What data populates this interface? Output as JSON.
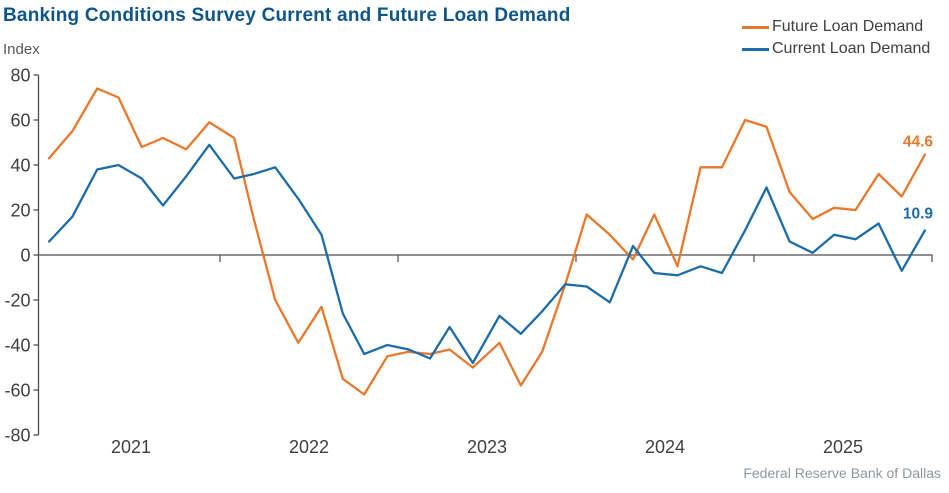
{
  "header": {
    "title": "Banking Conditions Survey Current and Future Loan Demand"
  },
  "y_axis_label": "Index",
  "footer": {
    "source": "Federal Reserve Bank of Dallas"
  },
  "colors": {
    "title": "#0E558A",
    "future": "#E8782B",
    "current": "#1B6CA8",
    "axis": "#4D4D4D",
    "tick_text": "#404040",
    "footer_text": "#8E979E"
  },
  "chart_data": {
    "type": "line",
    "title": "Banking Conditions Survey Current and Future Loan Demand",
    "ylabel": "Index",
    "xlabel": "",
    "grid": false,
    "legend_position": "top-right",
    "ylim": [
      -80,
      80
    ],
    "yticks": [
      80,
      60,
      40,
      20,
      0,
      -20,
      -40,
      -60,
      -80
    ],
    "xtick_year_labels": [
      "2021",
      "2022",
      "2023",
      "2024",
      "2025"
    ],
    "x": [
      2021.04,
      2021.17,
      2021.31,
      2021.43,
      2021.56,
      2021.68,
      2021.81,
      2021.94,
      2022.08,
      2022.19,
      2022.31,
      2022.44,
      2022.57,
      2022.69,
      2022.81,
      2022.94,
      2023.06,
      2023.18,
      2023.29,
      2023.42,
      2023.57,
      2023.69,
      2023.81,
      2023.94,
      2024.06,
      2024.19,
      2024.32,
      2024.44,
      2024.57,
      2024.7,
      2024.82,
      2024.95,
      2025.07,
      2025.2,
      2025.33,
      2025.45,
      2025.57,
      2025.7,
      2025.83,
      2025.96
    ],
    "series": [
      {
        "name": "Future Loan Demand",
        "color": "#E8782B",
        "values": [
          43,
          55,
          74,
          70,
          48,
          52,
          47,
          59,
          52,
          16,
          -20,
          -39,
          -23,
          -55,
          -62,
          -45,
          -43,
          -44,
          -42,
          -50,
          -39,
          -58,
          -43,
          -13,
          18,
          9,
          -2,
          18,
          -5,
          39,
          39,
          60,
          57,
          28,
          16,
          21,
          20,
          36,
          26,
          44.6
        ]
      },
      {
        "name": "Current Loan Demand",
        "color": "#1B6CA8",
        "values": [
          6,
          17,
          38,
          40,
          34,
          22,
          35,
          49,
          34,
          36,
          39,
          25,
          9,
          -26,
          -44,
          -40,
          -42,
          -46,
          -32,
          -48,
          -27,
          -35,
          -25,
          -13,
          -14,
          -21,
          4,
          -8,
          -9,
          -5,
          -8,
          11,
          30,
          6,
          1,
          9,
          7,
          14,
          -7,
          10.9
        ]
      }
    ],
    "end_labels": [
      {
        "text": "44.6",
        "series": "Future Loan Demand",
        "color": "#E8782B"
      },
      {
        "text": "10.9",
        "series": "Current Loan Demand",
        "color": "#1B6CA8"
      }
    ]
  }
}
